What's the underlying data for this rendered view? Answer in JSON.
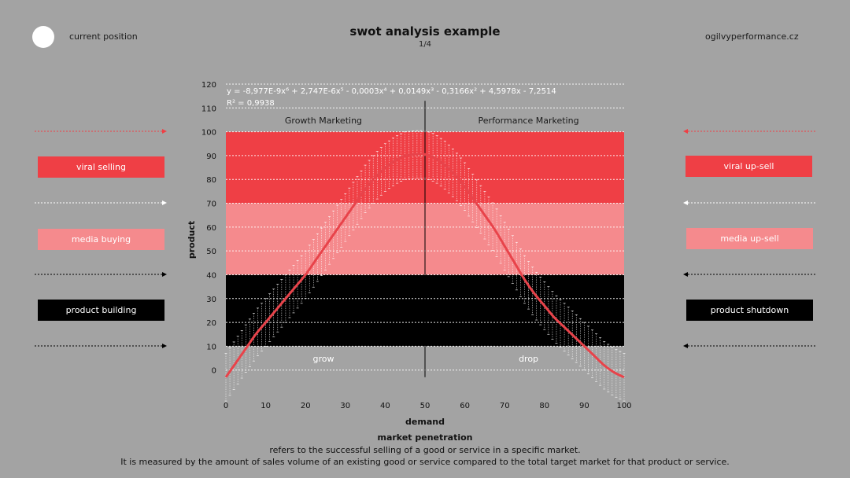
{
  "header": {
    "left_label": "current position",
    "title": "swot analysis example",
    "page": "1/4",
    "site": "ogilvyperformance.cz"
  },
  "left_buttons": [
    {
      "label": "viral selling"
    },
    {
      "label": "media buying"
    },
    {
      "label": "product building"
    }
  ],
  "right_buttons": [
    {
      "label": "viral up-sell"
    },
    {
      "label": "media up-sell"
    },
    {
      "label": "product shutdown"
    }
  ],
  "colors": {
    "background": "#a3a3a3",
    "band_top": "#ef3f45",
    "band_middle": "#f58a8d",
    "band_bottom": "#000000",
    "curve": "#e8434a"
  },
  "chart_data": {
    "type": "line",
    "xlabel": "demand",
    "ylabel": "product",
    "xlim": [
      0,
      100
    ],
    "ylim": [
      -10,
      120
    ],
    "xticks": [
      0,
      10,
      20,
      30,
      40,
      50,
      60,
      70,
      80,
      90,
      100
    ],
    "yticks": [
      0,
      10,
      20,
      30,
      40,
      50,
      60,
      70,
      80,
      90,
      100,
      110,
      120
    ],
    "grid": true,
    "equation": "y = -8,977E-9x⁶ + 2,747E-6x⁵ - 0,0003x⁴ + 0,0149x³ - 0,3166x² + 4,5978x - 7,2514",
    "r_squared": "R² = 0,9938",
    "bands": [
      {
        "from": 70,
        "to": 100,
        "color": "#ef3f45"
      },
      {
        "from": 40,
        "to": 70,
        "color": "#f58a8d"
      },
      {
        "from": 10,
        "to": 40,
        "color": "#000000"
      }
    ],
    "region_labels": {
      "top_left": "Growth Marketing",
      "top_right": "Performance Marketing",
      "bottom_left": "grow",
      "bottom_right": "drop"
    },
    "series": [
      {
        "x": [
          0,
          2.5,
          5,
          7.5,
          10,
          12.5,
          15,
          17.5,
          20,
          22.5,
          25,
          27.5,
          30,
          32.5,
          35,
          37.5,
          40,
          42.5,
          45,
          47.5,
          50,
          52.5,
          55,
          57.5,
          60,
          62.5,
          65,
          67.5,
          70,
          72.5,
          75,
          77.5,
          80,
          82.5,
          85,
          87.5,
          90,
          92.5,
          95,
          97.5,
          100
        ],
        "y": [
          -3,
          3,
          9,
          15,
          20,
          25,
          30,
          35,
          40,
          46,
          52,
          58,
          64,
          70,
          76,
          81,
          85,
          88,
          90,
          90.5,
          90.5,
          89,
          86,
          82,
          77,
          71,
          65,
          59,
          52,
          45,
          38,
          32,
          27,
          22,
          18,
          14,
          10,
          6,
          2,
          -1,
          -3
        ]
      }
    ],
    "error_bar_half_width": 10
  },
  "footer": {
    "heading": "market penetration",
    "line1": "refers to the successful selling of a good or service in a specific market.",
    "line2": "It is measured by the amount of sales volume of an existing good or service compared to the total target market for that product or service."
  }
}
